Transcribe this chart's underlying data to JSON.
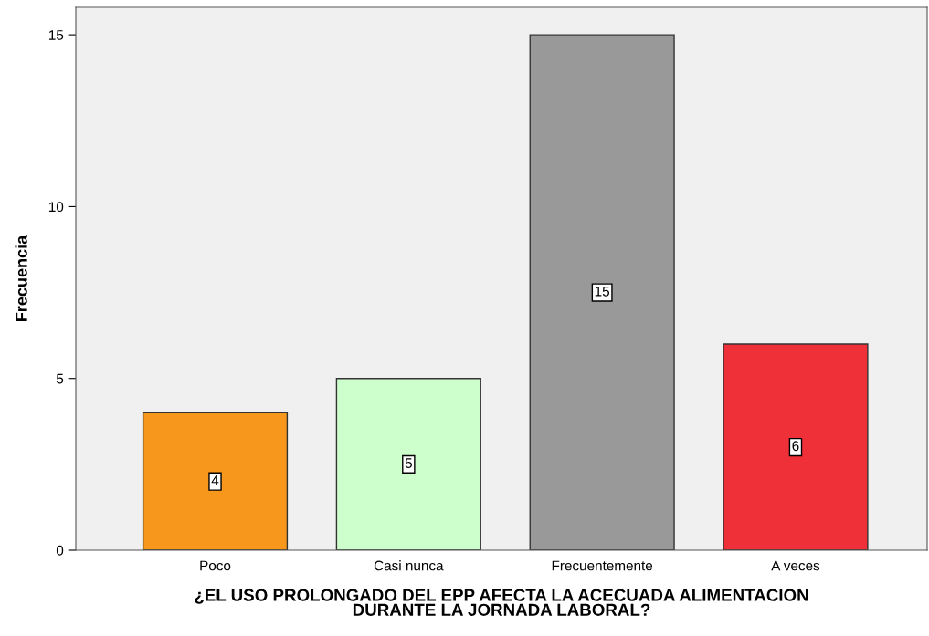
{
  "chart_data": {
    "type": "bar",
    "categories": [
      "Poco",
      "Casi nunca",
      "Frecuentemente",
      "A veces"
    ],
    "values": [
      4,
      5,
      15,
      6
    ],
    "colors": [
      "#f7981d",
      "#ccffcc",
      "#999999",
      "#ef3038"
    ],
    "xlabel": "¿EL USO PROLONGADO DEL EPP AFECTA LA ACECUADA ALIMENTACION\nDURANTE LA JORNADA LABORAL?",
    "ylabel": "Frecuencia",
    "ylim": [
      0,
      15.8
    ],
    "yticks": [
      0,
      5,
      10,
      15
    ],
    "data_labels": true,
    "grid": false
  }
}
